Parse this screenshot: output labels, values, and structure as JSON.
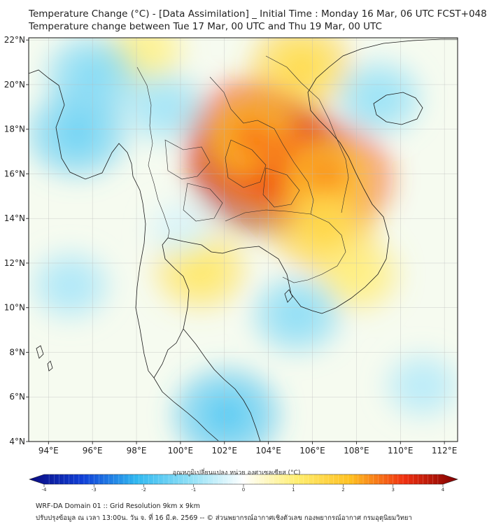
{
  "header": {
    "title_line1": "Temperature Change (°C) - [Data Assimilation] _ Initial Time : Monday 16 Mar, 06 UTC FCST+048",
    "title_line2": "Temperature change between Tue 17 Mar, 00 UTC and Thu 19 Mar, 00 UTC"
  },
  "map": {
    "lat_labels": [
      "22°N",
      "20°N",
      "18°N",
      "16°N",
      "14°N",
      "12°N",
      "10°N",
      "8°N",
      "6°N",
      "4°N"
    ],
    "lon_labels": [
      "94°E",
      "96°E",
      "98°E",
      "100°E",
      "102°E",
      "104°E",
      "106°E",
      "108°E",
      "110°E",
      "112°E"
    ],
    "lat_range": [
      4,
      22.1
    ],
    "lon_range": [
      93.1,
      112.6
    ],
    "anomalies": [
      {
        "name": "warm-northeast-thailand-laos",
        "lon": 104.0,
        "lat": 16.4,
        "value": 3.2
      },
      {
        "name": "warm-laos-north",
        "lon": 103.3,
        "lat": 17.6,
        "value": 2.5
      },
      {
        "name": "warm-vietnam-central",
        "lon": 106.6,
        "lat": 15.8,
        "value": 2.4
      },
      {
        "name": "warm-north-laos",
        "lon": 105.5,
        "lat": 20.8,
        "value": 1.5
      },
      {
        "name": "warm-cambodia",
        "lon": 106.5,
        "lat": 13.6,
        "value": 1.6
      },
      {
        "name": "warm-gulf-thailand",
        "lon": 100.9,
        "lat": 11.7,
        "value": 1.2
      },
      {
        "name": "warm-north-myanmar",
        "lon": 98.3,
        "lat": 21.5,
        "value": 0.9
      },
      {
        "name": "warm-south-vietnam",
        "lon": 108.0,
        "lat": 11.5,
        "value": 1.0
      },
      {
        "name": "cool-bay-of-bengal",
        "lon": 95.3,
        "lat": 17.8,
        "value": -1.4
      },
      {
        "name": "cool-myanmar-north",
        "lon": 96.0,
        "lat": 20.4,
        "value": -1.2
      },
      {
        "name": "cool-west-thailand",
        "lon": 99.3,
        "lat": 19.0,
        "value": -0.9
      },
      {
        "name": "cool-hainan",
        "lon": 109.0,
        "lat": 19.4,
        "value": -1.0
      },
      {
        "name": "cool-mekong-delta",
        "lon": 105.3,
        "lat": 9.7,
        "value": -1.1
      },
      {
        "name": "cool-south-china-sea",
        "lon": 102.1,
        "lat": 5.2,
        "value": -1.6
      },
      {
        "name": "cool-andaman",
        "lon": 95.0,
        "lat": 11.0,
        "value": -0.8
      },
      {
        "name": "cool-se-sea",
        "lon": 111.0,
        "lat": 6.5,
        "value": -0.7
      },
      {
        "name": "cool-central-thailand",
        "lon": 100.0,
        "lat": 13.5,
        "value": -0.4
      }
    ]
  },
  "colorbar": {
    "label": "อุณหภูมิเปลี่ยนแปลง หน่วย องศาเซลเซียส (°C)",
    "ticks": [
      "-4",
      "-3",
      "-2",
      "-1",
      "0",
      "1",
      "2",
      "3",
      "4"
    ],
    "range": [
      -4,
      4
    ],
    "colors": [
      "#0a0a80",
      "#1040d8",
      "#30b8f0",
      "#90e0f6",
      "#ffffff",
      "#ffee70",
      "#ffc020",
      "#f03010",
      "#800000"
    ]
  },
  "footer": {
    "line1": "WRF-DA Domain 01 :: Grid Resolution 9km x 9km",
    "line2": "ปรับปรุงข้อมูล ณ เวลา 13:00น. วัน จ. ที่ 16 มี.ค. 2569 -- © ส่วนพยากรณ์อากาศเชิงตัวเลข กองพยากรณ์อากาศ กรมอุตุนิยมวิทยา"
  }
}
